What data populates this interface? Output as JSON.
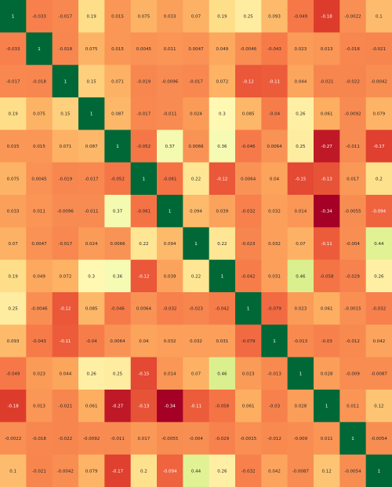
{
  "chart_data": {
    "type": "heatmap",
    "title": "",
    "xlabel": "",
    "ylabel": "",
    "grid": false,
    "legend": "none",
    "color_scale": {
      "vmin": -0.34,
      "vmax": 1,
      "stops": [
        "#a50026",
        "#d73027",
        "#f46d43",
        "#fdae61",
        "#fee08b",
        "#ffffbf",
        "#d9ef8b",
        "#a6d96a",
        "#66bd63",
        "#1a9850",
        "#006837"
      ]
    },
    "values": [
      [
        1,
        -0.033,
        -0.017,
        0.19,
        0.015,
        0.075,
        0.033,
        0.07,
        0.19,
        0.25,
        0.093,
        -0.049,
        -0.18,
        -0.0022,
        0.1
      ],
      [
        -0.033,
        1,
        -0.018,
        0.075,
        0.015,
        0.0045,
        0.011,
        0.0047,
        0.049,
        -0.0046,
        -0.043,
        0.023,
        0.013,
        -0.018,
        -0.021
      ],
      [
        -0.017,
        -0.018,
        1,
        0.15,
        0.071,
        -0.019,
        -0.0096,
        -0.017,
        0.072,
        -0.12,
        -0.11,
        0.044,
        -0.021,
        -0.022,
        -0.0042
      ],
      [
        0.19,
        0.075,
        0.15,
        1,
        0.087,
        -0.017,
        -0.011,
        0.024,
        0.3,
        0.085,
        -0.04,
        0.26,
        0.061,
        -0.0092,
        0.079
      ],
      [
        0.015,
        0.015,
        0.071,
        0.087,
        1,
        -0.052,
        0.37,
        0.0066,
        0.36,
        -0.046,
        0.0064,
        0.25,
        -0.27,
        -0.011,
        -0.17
      ],
      [
        0.075,
        0.0045,
        -0.019,
        -0.017,
        -0.052,
        1,
        -0.061,
        0.22,
        -0.12,
        0.0064,
        0.04,
        -0.15,
        -0.13,
        0.017,
        0.2
      ],
      [
        0.033,
        0.011,
        -0.0096,
        -0.011,
        0.37,
        -0.061,
        1,
        0.094,
        0.039,
        -0.032,
        0.032,
        0.014,
        -0.34,
        -0.0055,
        -0.094
      ],
      [
        0.07,
        0.0047,
        -0.017,
        0.024,
        0.0066,
        0.22,
        0.094,
        1,
        0.22,
        -0.023,
        0.032,
        0.07,
        -0.11,
        -0.004,
        0.44
      ],
      [
        0.19,
        0.049,
        0.072,
        0.3,
        0.36,
        -0.12,
        0.039,
        0.22,
        1,
        -0.042,
        0.031,
        0.46,
        -0.058,
        -0.029,
        0.26
      ],
      [
        0.25,
        -0.0046,
        -0.12,
        0.085,
        -0.046,
        0.0064,
        -0.032,
        -0.023,
        -0.042,
        1,
        -0.079,
        0.023,
        0.061,
        -0.0015,
        -0.032
      ],
      [
        0.093,
        -0.043,
        -0.11,
        -0.04,
        0.0064,
        0.04,
        0.032,
        0.032,
        0.031,
        -0.079,
        1,
        -0.013,
        -0.03,
        -0.012,
        0.042
      ],
      [
        -0.049,
        0.023,
        0.044,
        0.26,
        0.25,
        -0.15,
        0.014,
        0.07,
        0.46,
        0.023,
        -0.013,
        1,
        0.028,
        -0.009,
        -0.0087
      ],
      [
        -0.18,
        0.013,
        -0.021,
        0.061,
        -0.27,
        -0.13,
        -0.34,
        -0.11,
        -0.058,
        0.061,
        -0.03,
        0.028,
        1,
        0.011,
        0.12
      ],
      [
        -0.0022,
        -0.018,
        -0.022,
        -0.0092,
        -0.011,
        0.017,
        -0.0055,
        -0.004,
        -0.029,
        -0.0015,
        -0.012,
        -0.009,
        0.011,
        1,
        -0.0054
      ],
      [
        0.1,
        -0.021,
        -0.0042,
        0.079,
        -0.17,
        0.2,
        -0.094,
        0.44,
        0.26,
        -0.032,
        0.042,
        -0.0087,
        0.12,
        -0.0054,
        1
      ]
    ]
  }
}
